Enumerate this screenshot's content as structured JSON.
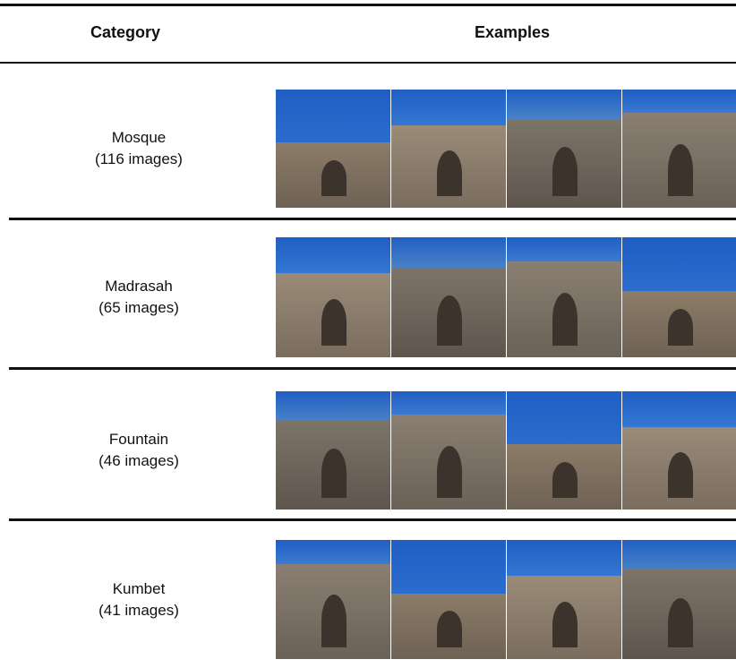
{
  "table": {
    "header": [
      "Category",
      "Examples"
    ],
    "rows": [
      {
        "name": "Mosque",
        "count": "(116 images)"
      },
      {
        "name": "Madrasah",
        "count": "(65 images)"
      },
      {
        "name": "Fountain",
        "count": "(46 images)"
      },
      {
        "name": "Kumbet",
        "count": "(41 images)"
      }
    ]
  }
}
